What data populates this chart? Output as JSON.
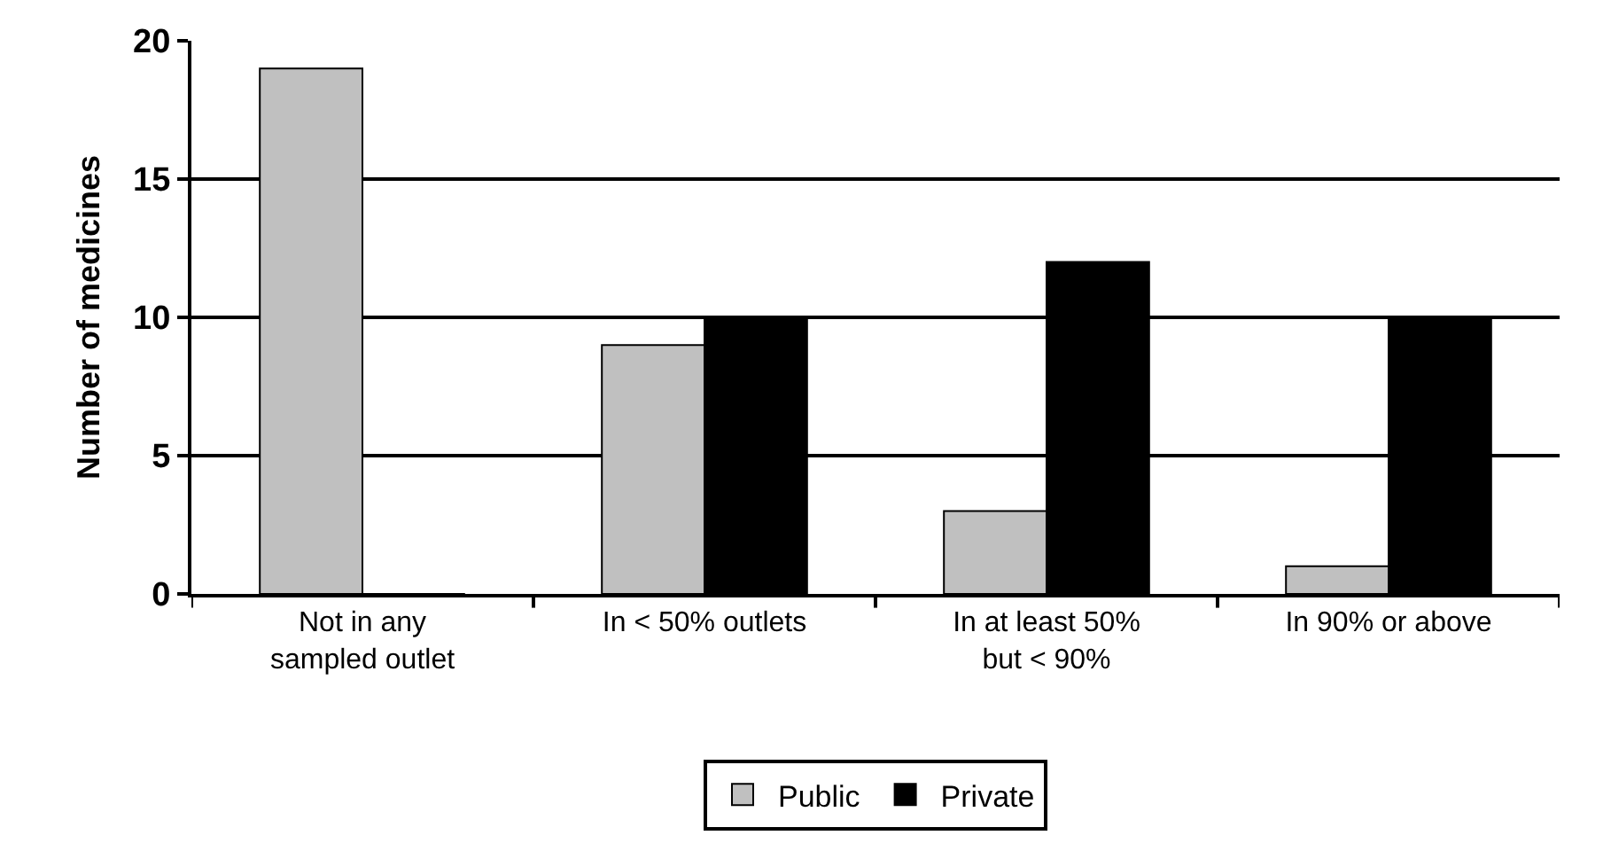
{
  "chart_data": {
    "type": "bar",
    "ylabel": "Number of medicines",
    "categories": [
      "Not in any\nsampled outlet",
      "In < 50% outlets",
      "In at least 50%\nbut < 90%",
      "In 90% or above"
    ],
    "series": [
      {
        "name": "Public",
        "color": "#c0c0c0",
        "values": [
          19,
          9,
          3,
          1
        ]
      },
      {
        "name": "Private",
        "color": "#000000",
        "values": [
          0,
          10,
          12,
          10
        ]
      }
    ],
    "ylim": [
      0,
      20
    ],
    "yticks": [
      0,
      5,
      10,
      15,
      20
    ],
    "grid": "y",
    "legend": "bottom"
  }
}
